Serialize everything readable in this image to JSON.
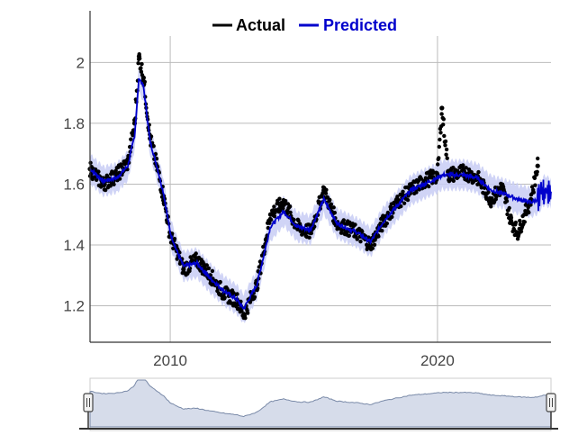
{
  "legend": {
    "actual_label": "Actual",
    "predicted_label": "Predicted"
  },
  "colors": {
    "actual": "#000000",
    "predicted": "#0000cc",
    "band": "#c8ccf5",
    "grid": "#bbbbbb",
    "navigator_fill": "#d6dcea",
    "navigator_line": "#7a8aa8"
  },
  "range_selector": {
    "left_handle_icon": "drag-handle-icon",
    "right_handle_icon": "drag-handle-icon"
  },
  "chart_data": {
    "type": "line",
    "title": "",
    "xlabel": "",
    "ylabel": "",
    "x_ticks": [
      "2010",
      "2020"
    ],
    "y_ticks": [
      "1.2",
      "1.4",
      "1.6",
      "1.8",
      "2"
    ],
    "xlim": [
      "2007-01-01",
      "2024-03-31"
    ],
    "ylim": [
      1.08,
      2.17
    ],
    "grid": true,
    "legend_position": "top-center",
    "series": [
      {
        "name": "Actual",
        "style": "scatter",
        "x": [
          "2007-01-01",
          "2007-07-01",
          "2008-01-01",
          "2008-06-01",
          "2008-09-01",
          "2008-11-01",
          "2009-01-01",
          "2009-04-01",
          "2009-07-01",
          "2009-10-01",
          "2010-01-01",
          "2010-04-01",
          "2010-07-01",
          "2011-01-01",
          "2011-07-01",
          "2012-01-01",
          "2012-07-01",
          "2012-10-01",
          "2013-04-01",
          "2013-10-01",
          "2014-04-01",
          "2014-10-01",
          "2015-04-01",
          "2015-10-01",
          "2016-04-01",
          "2016-10-01",
          "2017-01-01",
          "2017-07-01",
          "2018-01-01",
          "2018-07-01",
          "2019-01-01",
          "2019-07-01",
          "2020-01-01",
          "2020-03-01",
          "2020-06-01",
          "2021-01-01",
          "2021-07-01",
          "2022-01-01",
          "2022-06-01",
          "2022-10-01",
          "2023-01-01",
          "2023-07-01",
          "2023-10-01"
        ],
        "values": [
          1.65,
          1.6,
          1.63,
          1.67,
          1.8,
          2.02,
          1.95,
          1.75,
          1.66,
          1.56,
          1.43,
          1.38,
          1.32,
          1.35,
          1.3,
          1.24,
          1.22,
          1.17,
          1.27,
          1.5,
          1.54,
          1.46,
          1.44,
          1.58,
          1.47,
          1.45,
          1.44,
          1.4,
          1.48,
          1.54,
          1.58,
          1.61,
          1.63,
          1.85,
          1.63,
          1.64,
          1.62,
          1.55,
          1.59,
          1.48,
          1.44,
          1.55,
          1.66
        ]
      },
      {
        "name": "Predicted",
        "style": "line",
        "x": [
          "2007-01-01",
          "2007-07-01",
          "2008-01-01",
          "2008-06-01",
          "2008-09-01",
          "2008-11-01",
          "2009-01-01",
          "2009-04-01",
          "2009-07-01",
          "2009-10-01",
          "2010-01-01",
          "2010-04-01",
          "2010-07-01",
          "2011-01-01",
          "2011-07-01",
          "2012-01-01",
          "2012-07-01",
          "2012-10-01",
          "2013-04-01",
          "2013-10-01",
          "2014-04-01",
          "2014-10-01",
          "2015-04-01",
          "2015-10-01",
          "2016-04-01",
          "2016-10-01",
          "2017-01-01",
          "2017-07-01",
          "2018-01-01",
          "2018-07-01",
          "2019-01-01",
          "2019-07-01",
          "2020-01-01",
          "2020-03-01",
          "2020-06-01",
          "2021-01-01",
          "2021-07-01",
          "2022-01-01",
          "2022-06-01",
          "2022-10-01",
          "2023-01-01",
          "2023-07-01",
          "2023-10-01",
          "2024-01-01",
          "2024-03-31"
        ],
        "values": [
          1.65,
          1.61,
          1.62,
          1.66,
          1.76,
          1.95,
          1.92,
          1.74,
          1.66,
          1.57,
          1.44,
          1.38,
          1.33,
          1.34,
          1.29,
          1.25,
          1.22,
          1.19,
          1.27,
          1.46,
          1.51,
          1.46,
          1.45,
          1.55,
          1.47,
          1.45,
          1.44,
          1.41,
          1.48,
          1.53,
          1.58,
          1.6,
          1.62,
          1.63,
          1.63,
          1.63,
          1.62,
          1.58,
          1.57,
          1.56,
          1.55,
          1.54,
          1.55,
          1.58,
          1.57
        ]
      }
    ],
    "navigator": {
      "xlim": [
        "2007-01-01",
        "2024-03-31"
      ]
    }
  }
}
